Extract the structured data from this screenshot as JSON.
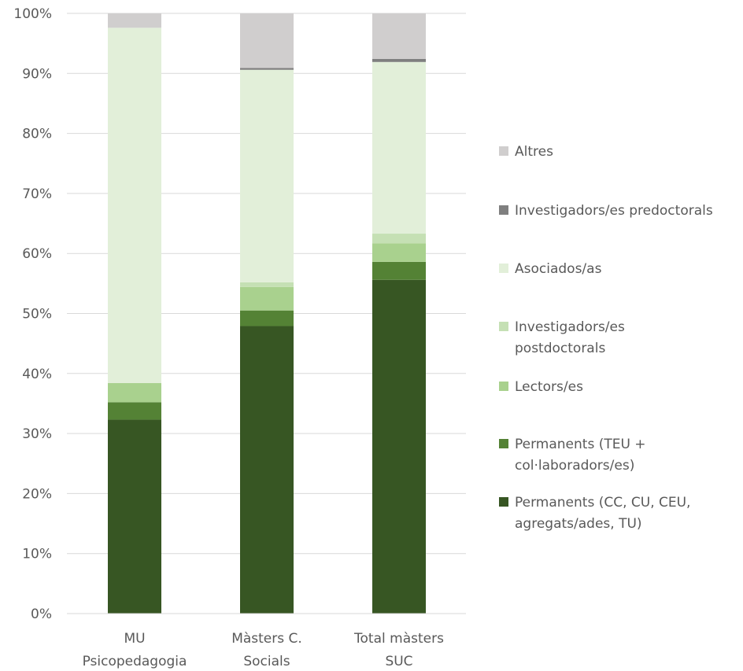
{
  "chart_data": {
    "type": "bar",
    "stacked": true,
    "percent": true,
    "categories": [
      [
        "MU",
        "Psicopedagogia"
      ],
      [
        "Màsters C.",
        "Socials"
      ],
      [
        "Total màsters",
        "SUC"
      ]
    ],
    "ylim": [
      0,
      100
    ],
    "yticks": [
      "0%",
      "10%",
      "20%",
      "30%",
      "40%",
      "50%",
      "60%",
      "70%",
      "80%",
      "90%",
      "100%"
    ],
    "grid": true,
    "legend_position": "right",
    "series": [
      {
        "name": [
          "Permanents (CC, CU, CEU,",
          "agregats/ades, TU)"
        ],
        "color": "#375623",
        "values": [
          32.3,
          47.9,
          55.6
        ]
      },
      {
        "name": [
          "Permanents (TEU +",
          "col·laboradors/es)"
        ],
        "color": "#548235",
        "values": [
          2.9,
          2.6,
          3.0
        ]
      },
      {
        "name": [
          "Lectors/es"
        ],
        "color": "#a9d18e",
        "values": [
          3.2,
          3.9,
          3.1
        ]
      },
      {
        "name": [
          "Investigadors/es",
          "postdoctorals"
        ],
        "color": "#c5e0b4",
        "values": [
          0.0,
          0.8,
          1.6
        ]
      },
      {
        "name": [
          "Asociados/as"
        ],
        "color": "#e2efd9",
        "values": [
          59.2,
          35.4,
          28.6
        ]
      },
      {
        "name": [
          "Investigadors/es predoctorals"
        ],
        "color": "#7f7f7f",
        "values": [
          0.0,
          0.3,
          0.5
        ]
      },
      {
        "name": [
          "Altres"
        ],
        "color": "#d0cece",
        "values": [
          2.4,
          9.1,
          7.6
        ]
      }
    ]
  }
}
